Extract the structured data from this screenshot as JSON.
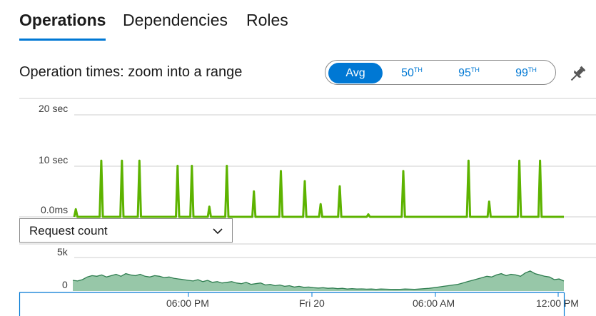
{
  "tabs": [
    {
      "label": "Operations",
      "active": true
    },
    {
      "label": "Dependencies",
      "active": false
    },
    {
      "label": "Roles",
      "active": false
    }
  ],
  "operation_times": {
    "title": "Operation times: zoom into a range",
    "percentile_options": [
      {
        "label": "Avg",
        "sup": "",
        "selected": true
      },
      {
        "label": "50",
        "sup": "TH",
        "selected": false
      },
      {
        "label": "95",
        "sup": "TH",
        "selected": false
      },
      {
        "label": "99",
        "sup": "TH",
        "selected": false
      }
    ],
    "pin_icon": "pin-icon"
  },
  "dropdown": {
    "selected": "Request count"
  },
  "colors": {
    "accent": "#0078d4",
    "duration_line": "#5db300",
    "count_fill": "#97c7a8",
    "count_line": "#2e7d4f"
  },
  "chart_data": [
    {
      "type": "line",
      "ylim_labels": [
        "20 sec",
        "10 sec",
        "0.0ms"
      ],
      "ylim_sec": [
        0,
        20
      ],
      "series": [
        {
          "values_sec": [
            0,
            1.5,
            0,
            0,
            0,
            0,
            0,
            0,
            0,
            0,
            0,
            0,
            0,
            0,
            0,
            0,
            0,
            11,
            0,
            0,
            0,
            0,
            0,
            0,
            0,
            0,
            0,
            0,
            0,
            0,
            11,
            0,
            0,
            0,
            0,
            0,
            0,
            0,
            0,
            0,
            0,
            11,
            0,
            0,
            0,
            0,
            0,
            0,
            0,
            0,
            0,
            0,
            0,
            0,
            0,
            0,
            0,
            0,
            0,
            0,
            0,
            0,
            0,
            0,
            0,
            10,
            0,
            0,
            0,
            0,
            0,
            0,
            0,
            0,
            10,
            0,
            0,
            0,
            0,
            0,
            0,
            0,
            0,
            0,
            0,
            2,
            0,
            0,
            0,
            0,
            0,
            0,
            0,
            0,
            0,
            0,
            10,
            0,
            0,
            0,
            0,
            0,
            0,
            0,
            0,
            0,
            0,
            0,
            0,
            0,
            0,
            0,
            0,
            5,
            0,
            0,
            0,
            0,
            0,
            0,
            0,
            0,
            0,
            0,
            0,
            0,
            0,
            0,
            0,
            0,
            9,
            0,
            0,
            0,
            0,
            0,
            0,
            0,
            0,
            0,
            0,
            0,
            0,
            0,
            0,
            7,
            0,
            0,
            0,
            0,
            0,
            0,
            0,
            0,
            0,
            2.5,
            0,
            0,
            0,
            0,
            0,
            0,
            0,
            0,
            0,
            0,
            0,
            6,
            0,
            0,
            0,
            0,
            0,
            0,
            0,
            0,
            0,
            0,
            0,
            0,
            0,
            0,
            0,
            0,
            0,
            0.5,
            0,
            0,
            0,
            0,
            0,
            0,
            0,
            0,
            0,
            0,
            0,
            0,
            0,
            0,
            0,
            0,
            0,
            0,
            0,
            0,
            0,
            9,
            0,
            0,
            0,
            0,
            0,
            0,
            0,
            0,
            0,
            0,
            0,
            0,
            0,
            0,
            0,
            0,
            0,
            0,
            0,
            0,
            0,
            0,
            0,
            0,
            0,
            0,
            0,
            0,
            0,
            0,
            0,
            0,
            0,
            0,
            0,
            0,
            0,
            0,
            0,
            0,
            11,
            0,
            0,
            0,
            0,
            0,
            0,
            0,
            0,
            0,
            0,
            0,
            0,
            3,
            0,
            0,
            0,
            0,
            0,
            0,
            0,
            0,
            0,
            0,
            0,
            0,
            0,
            0,
            0,
            0,
            0,
            0,
            11,
            0,
            0,
            0,
            0,
            0,
            0,
            0,
            0,
            0,
            0,
            0,
            0,
            11,
            0,
            0,
            0,
            0,
            0,
            0,
            0,
            0,
            0,
            0,
            0,
            0,
            0,
            0,
            0
          ]
        }
      ]
    },
    {
      "type": "area",
      "ylim_labels": [
        "5k",
        "0"
      ],
      "ylim": [
        0,
        5000
      ],
      "x_tick_labels": [
        "06:00 PM",
        "Fri 20",
        "06:00 AM",
        "12:00 PM"
      ],
      "series": [
        {
          "name": "Request count",
          "values": [
            1600,
            1500,
            1700,
            2100,
            2300,
            2200,
            2400,
            2100,
            2300,
            2500,
            2200,
            2600,
            2400,
            2300,
            2500,
            2200,
            2100,
            2300,
            2200,
            2000,
            2100,
            1900,
            1800,
            1700,
            1600,
            1500,
            1700,
            1400,
            1600,
            1300,
            1400,
            1200,
            1300,
            1400,
            1200,
            1100,
            1300,
            1000,
            1100,
            1200,
            900,
            1000,
            800,
            900,
            700,
            800,
            600,
            700,
            550,
            600,
            500,
            450,
            500,
            400,
            450,
            350,
            400,
            300,
            350,
            300,
            320,
            280,
            300,
            250,
            300,
            280,
            260,
            240,
            250,
            300,
            280,
            260,
            300,
            350,
            400,
            500,
            600,
            700,
            800,
            900,
            1000,
            1200,
            1400,
            1600,
            1800,
            2000,
            2200,
            2100,
            2400,
            2600,
            2300,
            2500,
            2400,
            2200,
            2700,
            3000,
            2600,
            2400,
            2200,
            2100,
            1700,
            1800,
            1500
          ]
        }
      ]
    }
  ]
}
